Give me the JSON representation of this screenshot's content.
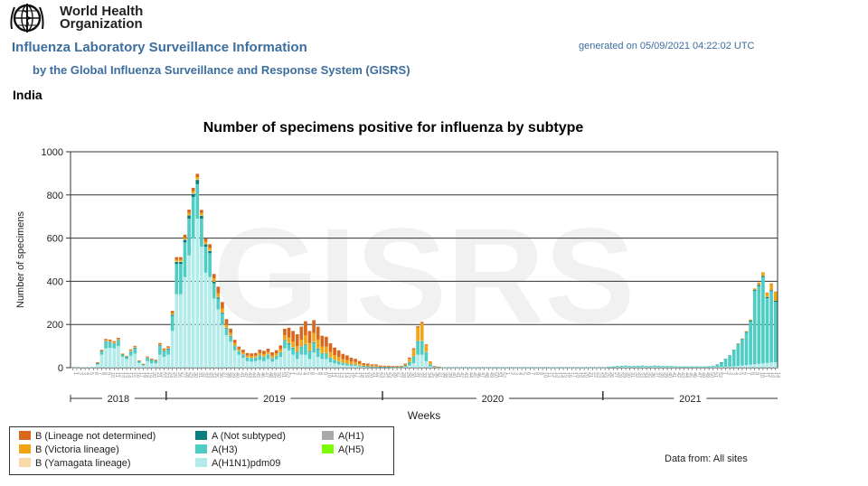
{
  "header": {
    "org_line1": "World Health",
    "org_line2": "Organization",
    "title": "Influenza Laboratory Surveillance Information",
    "subtitle": "by the Global Influenza Surveillance and Response System (GISRS)",
    "generated": "generated on 05/09/2021 04:22:02 UTC",
    "country": "India"
  },
  "footer": {
    "data_from": "Data from: All sites"
  },
  "colors": {
    "b_not_det": "#d9681f",
    "b_victoria": "#f2a514",
    "b_yamagata": "#fad9a8",
    "a_not_subtyped": "#0e7c7b",
    "a_h3": "#4ecdc4",
    "a_h1n1pdm": "#b2ecea",
    "a_h1": "#a9a9a9",
    "a_h5": "#7cfc00"
  },
  "legend": [
    {
      "key": "b_not_det",
      "label": "B (Lineage not determined)"
    },
    {
      "key": "b_victoria",
      "label": "B (Victoria lineage)"
    },
    {
      "key": "b_yamagata",
      "label": "B (Yamagata lineage)"
    },
    {
      "key": "a_not_subtyped",
      "label": "A (Not subtyped)"
    },
    {
      "key": "a_h3",
      "label": "A(H3)"
    },
    {
      "key": "a_h1n1pdm",
      "label": "A(H1N1)pdm09"
    },
    {
      "key": "a_h1",
      "label": "A(H1)"
    },
    {
      "key": "a_h5",
      "label": "A(H5)"
    }
  ],
  "chart_data": {
    "type": "bar",
    "stacked": true,
    "title": "Number of specimens positive for influenza by subtype",
    "ylabel": "Number of specimens",
    "xlabel": "Weeks",
    "watermark": "GISRS",
    "ylim": [
      0,
      1000
    ],
    "yticks": [
      0,
      200,
      400,
      600,
      800,
      1000
    ],
    "grid": true,
    "legend_position": "bottom-left",
    "years": [
      {
        "label": "2018",
        "start_week": 0,
        "end_week": 23
      },
      {
        "label": "2019",
        "start_week": 23,
        "end_week": 75
      },
      {
        "label": "2020",
        "start_week": 75,
        "end_week": 128
      },
      {
        "label": "2021",
        "start_week": 128,
        "end_week": 170
      }
    ],
    "series_order": [
      "a_h1n1pdm",
      "a_h3",
      "a_not_subtyped",
      "b_yamagata",
      "b_victoria",
      "b_not_det"
    ],
    "series": [
      {
        "key": "a_h1n1pdm",
        "values": [
          1,
          1,
          2,
          3,
          3,
          5,
          15,
          60,
          90,
          92,
          90,
          100,
          50,
          40,
          55,
          65,
          22,
          10,
          30,
          20,
          20,
          60,
          50,
          60,
          170,
          340,
          340,
          420,
          520,
          600,
          690,
          560,
          440,
          420,
          320,
          270,
          200,
          150,
          120,
          80,
          60,
          45,
          30,
          28,
          30,
          35,
          30,
          40,
          28,
          38,
          50,
          90,
          80,
          60,
          40,
          60,
          60,
          40,
          70,
          50,
          40,
          40,
          25,
          20,
          15,
          12,
          10,
          8,
          8,
          5,
          4,
          3,
          2,
          2,
          2,
          2,
          2,
          1,
          1,
          1,
          4,
          10,
          20,
          60,
          60,
          30,
          5,
          2,
          1,
          1,
          1,
          1,
          1,
          1,
          1,
          1,
          1,
          1,
          1,
          1,
          1,
          1,
          1,
          1,
          1,
          1,
          1,
          1,
          1,
          1,
          1,
          1,
          1,
          1,
          1,
          1,
          1,
          1,
          1,
          1,
          1,
          1,
          1,
          1,
          1,
          1,
          1,
          1,
          1,
          2,
          2,
          3,
          3,
          4,
          3,
          3,
          3,
          4,
          3,
          3,
          4,
          3,
          3,
          3,
          3,
          3,
          2,
          2,
          2,
          2,
          2,
          2,
          2,
          2,
          3,
          3,
          4,
          4,
          5,
          6,
          8,
          10,
          12,
          14,
          16,
          18,
          20,
          22,
          24,
          25
        ]
      },
      {
        "key": "a_h3",
        "values": [
          0,
          0,
          0,
          0,
          0,
          0,
          5,
          15,
          30,
          25,
          20,
          25,
          10,
          10,
          20,
          25,
          8,
          5,
          15,
          15,
          10,
          40,
          25,
          25,
          70,
          140,
          140,
          160,
          170,
          190,
          160,
          130,
          120,
          110,
          70,
          50,
          50,
          30,
          25,
          20,
          15,
          15,
          15,
          15,
          15,
          20,
          20,
          20,
          15,
          15,
          20,
          35,
          30,
          30,
          30,
          35,
          45,
          35,
          45,
          35,
          25,
          25,
          20,
          15,
          12,
          10,
          8,
          6,
          6,
          4,
          3,
          2,
          2,
          2,
          1,
          1,
          1,
          1,
          1,
          1,
          5,
          15,
          30,
          60,
          60,
          40,
          10,
          3,
          2,
          1,
          1,
          1,
          1,
          1,
          1,
          1,
          1,
          1,
          1,
          1,
          1,
          1,
          1,
          1,
          1,
          1,
          1,
          1,
          1,
          1,
          1,
          1,
          1,
          1,
          1,
          1,
          1,
          1,
          1,
          1,
          1,
          1,
          1,
          1,
          1,
          1,
          1,
          1,
          1,
          3,
          4,
          5,
          6,
          6,
          5,
          5,
          6,
          6,
          5,
          5,
          6,
          6,
          5,
          5,
          5,
          4,
          4,
          4,
          4,
          4,
          4,
          4,
          4,
          5,
          6,
          10,
          20,
          35,
          50,
          75,
          100,
          120,
          150,
          200,
          340,
          360,
          400,
          300,
          330,
          280
        ]
      },
      {
        "key": "a_not_subtyped",
        "values": [
          0,
          0,
          0,
          0,
          0,
          0,
          1,
          2,
          3,
          3,
          3,
          3,
          1,
          1,
          2,
          3,
          1,
          1,
          2,
          2,
          2,
          4,
          4,
          4,
          6,
          10,
          10,
          12,
          15,
          15,
          20,
          14,
          12,
          10,
          8,
          6,
          5,
          4,
          3,
          3,
          2,
          2,
          2,
          2,
          2,
          2,
          2,
          2,
          2,
          2,
          2,
          3,
          3,
          3,
          3,
          3,
          3,
          3,
          3,
          3,
          2,
          2,
          2,
          2,
          2,
          1,
          1,
          1,
          1,
          1,
          1,
          1,
          1,
          1,
          1,
          1,
          1,
          1,
          1,
          1,
          1,
          1,
          2,
          3,
          3,
          2,
          1,
          0,
          0,
          0,
          0,
          0,
          0,
          0,
          0,
          0,
          0,
          0,
          0,
          0,
          0,
          0,
          0,
          0,
          0,
          0,
          0,
          0,
          0,
          0,
          0,
          0,
          0,
          0,
          0,
          0,
          0,
          0,
          0,
          0,
          0,
          0,
          0,
          0,
          0,
          0,
          0,
          0,
          0,
          0,
          0,
          0,
          0,
          0,
          0,
          0,
          0,
          0,
          0,
          0,
          0,
          0,
          0,
          0,
          0,
          0,
          0,
          0,
          0,
          0,
          0,
          0,
          0,
          0,
          0,
          1,
          1,
          1,
          2,
          2,
          3,
          3,
          4,
          5,
          5,
          5,
          5,
          5,
          5,
          5
        ]
      },
      {
        "key": "b_yamagata",
        "values": [
          0,
          0,
          0,
          0,
          0,
          0,
          0,
          0,
          1,
          1,
          1,
          1,
          0,
          0,
          1,
          1,
          0,
          0,
          0,
          0,
          0,
          1,
          1,
          1,
          1,
          2,
          2,
          2,
          2,
          3,
          3,
          2,
          2,
          2,
          2,
          1,
          1,
          1,
          1,
          1,
          1,
          1,
          1,
          1,
          1,
          1,
          1,
          1,
          1,
          1,
          1,
          2,
          2,
          2,
          2,
          2,
          2,
          2,
          2,
          2,
          1,
          1,
          1,
          1,
          1,
          1,
          1,
          1,
          1,
          1,
          0,
          0,
          0,
          0,
          0,
          0,
          0,
          0,
          0,
          0,
          0,
          1,
          2,
          3,
          3,
          2,
          1,
          0,
          0,
          0,
          0,
          0,
          0,
          0,
          0,
          0,
          0,
          0,
          0,
          0,
          0,
          0,
          0,
          0,
          0,
          0,
          0,
          0,
          0,
          0,
          0,
          0,
          0,
          0,
          0,
          0,
          0,
          0,
          0,
          0,
          0,
          0,
          0,
          0,
          0,
          0,
          0,
          0,
          0,
          0,
          0,
          0,
          0,
          0,
          0,
          0,
          0,
          0,
          0,
          0,
          0,
          0,
          0,
          0,
          0,
          0,
          0,
          0,
          0,
          0,
          0,
          0,
          0,
          0,
          0,
          0,
          0,
          0,
          0,
          0,
          0,
          0,
          0,
          0,
          0,
          0,
          0,
          0,
          0,
          0
        ]
      },
      {
        "key": "b_victoria",
        "values": [
          0,
          0,
          0,
          0,
          0,
          0,
          2,
          3,
          4,
          4,
          4,
          4,
          2,
          2,
          3,
          3,
          1,
          1,
          2,
          2,
          2,
          4,
          4,
          4,
          6,
          8,
          8,
          8,
          10,
          10,
          10,
          10,
          10,
          12,
          14,
          18,
          18,
          15,
          12,
          10,
          8,
          8,
          8,
          8,
          8,
          10,
          10,
          10,
          10,
          10,
          12,
          20,
          25,
          25,
          25,
          30,
          40,
          35,
          40,
          40,
          30,
          30,
          25,
          20,
          20,
          15,
          15,
          12,
          10,
          8,
          5,
          5,
          4,
          4,
          2,
          2,
          2,
          2,
          2,
          2,
          5,
          15,
          30,
          60,
          80,
          30,
          10,
          2,
          1,
          0,
          0,
          0,
          0,
          0,
          0,
          0,
          0,
          0,
          0,
          0,
          0,
          0,
          0,
          0,
          0,
          0,
          0,
          0,
          0,
          0,
          0,
          0,
          0,
          0,
          0,
          0,
          0,
          0,
          0,
          0,
          0,
          0,
          0,
          0,
          0,
          0,
          0,
          0,
          0,
          0,
          0,
          0,
          0,
          0,
          0,
          0,
          0,
          0,
          0,
          0,
          0,
          0,
          0,
          0,
          0,
          0,
          0,
          0,
          0,
          0,
          0,
          0,
          0,
          0,
          0,
          0,
          0,
          0,
          0,
          0,
          1,
          2,
          3,
          4,
          6,
          10,
          15,
          20,
          30,
          40
        ]
      },
      {
        "key": "b_not_det",
        "values": [
          0,
          0,
          0,
          0,
          0,
          0,
          2,
          3,
          5,
          5,
          5,
          5,
          2,
          2,
          4,
          4,
          1,
          1,
          3,
          3,
          3,
          5,
          5,
          5,
          10,
          12,
          12,
          14,
          15,
          15,
          15,
          15,
          15,
          18,
          20,
          30,
          30,
          25,
          20,
          15,
          12,
          12,
          12,
          12,
          12,
          15,
          15,
          15,
          15,
          15,
          18,
          30,
          45,
          50,
          55,
          60,
          65,
          55,
          60,
          60,
          50,
          45,
          40,
          35,
          30,
          25,
          22,
          18,
          15,
          12,
          8,
          8,
          6,
          6,
          4,
          3,
          3,
          3,
          3,
          3,
          4,
          5,
          6,
          6,
          6,
          4,
          2,
          1,
          1,
          0,
          0,
          0,
          0,
          0,
          0,
          0,
          0,
          0,
          0,
          0,
          0,
          0,
          0,
          0,
          0,
          0,
          0,
          0,
          0,
          0,
          0,
          0,
          0,
          0,
          0,
          0,
          0,
          0,
          0,
          0,
          0,
          0,
          0,
          0,
          0,
          0,
          0,
          0,
          0,
          0,
          0,
          0,
          0,
          0,
          0,
          0,
          0,
          0,
          0,
          0,
          0,
          0,
          0,
          0,
          0,
          0,
          0,
          0,
          0,
          0,
          0,
          0,
          0,
          0,
          0,
          0,
          0,
          0,
          0,
          0,
          0,
          0,
          0,
          0,
          0,
          1,
          1,
          1,
          1,
          2
        ]
      }
    ]
  }
}
